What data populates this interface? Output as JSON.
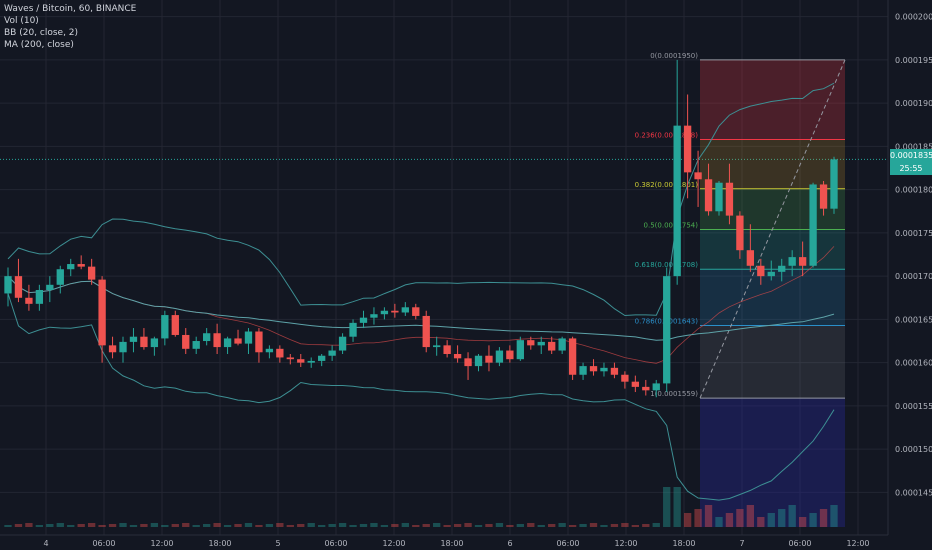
{
  "legend": {
    "symbol_line": "Waves / Bitcoin, 60, BINANCE",
    "vol": "Vol (10)",
    "bb": "BB (20, close, 2)",
    "ma": "MA (200, close)"
  },
  "badges": {
    "price": "0.0001835",
    "countdown": "25:55"
  },
  "colors": {
    "bg": "#131722",
    "up": "#26a69a",
    "down": "#ef5350",
    "grid": "#232632",
    "bb": "#3d8f93",
    "ma": "#d94a4a"
  },
  "chart_data": {
    "type": "candlestick",
    "ylim": [
      0.000141,
      0.000201
    ],
    "y_ticks": [
      "0.0002000",
      "0.0001950",
      "0.0001900",
      "0.0001850",
      "0.0001800",
      "0.0001750",
      "0.0001700",
      "0.0001650",
      "0.0001600",
      "0.0001550",
      "0.0001500",
      "0.0001450"
    ],
    "x_ticks": [
      "4",
      "06:00",
      "12:00",
      "18:00",
      "5",
      "06:00",
      "12:00",
      "18:00",
      "6",
      "06:00",
      "12:00",
      "18:00",
      "7",
      "06:00",
      "12:00"
    ],
    "current_price": 0.0001835,
    "fibonacci": [
      {
        "label": "0(0.0001950)",
        "value": 0.000195,
        "color": "#9598a1"
      },
      {
        "label": "0.236(0.0001858)",
        "value": 0.0001858,
        "color": "#f23645"
      },
      {
        "label": "0.382(0.0001801)",
        "value": 0.0001801,
        "color": "#c8c834"
      },
      {
        "label": "0.5(0.0001754)",
        "value": 0.0001754,
        "color": "#4caf50"
      },
      {
        "label": "0.618(0.0001708)",
        "value": 0.0001708,
        "color": "#26a69a"
      },
      {
        "label": "0.786(0.0001643)",
        "value": 0.0001643,
        "color": "#2a8fc9"
      },
      {
        "label": "1(0.0001559)",
        "value": 0.0001559,
        "color": "#9598a1"
      }
    ],
    "candles": [
      [
        0.000168,
        0.000171,
        0.0001665,
        0.00017
      ],
      [
        0.00017,
        0.000172,
        0.000167,
        0.0001675
      ],
      [
        0.0001675,
        0.000169,
        0.000166,
        0.0001668
      ],
      [
        0.0001668,
        0.000169,
        0.000166,
        0.0001684
      ],
      [
        0.0001684,
        0.00017,
        0.000167,
        0.000169
      ],
      [
        0.000169,
        0.0001712,
        0.000168,
        0.0001708
      ],
      [
        0.0001708,
        0.000172,
        0.00017,
        0.0001714
      ],
      [
        0.0001714,
        0.0001724,
        0.0001708,
        0.0001711
      ],
      [
        0.0001711,
        0.000172,
        0.000169,
        0.0001696
      ],
      [
        0.0001696,
        0.00017,
        0.00016,
        0.000162
      ],
      [
        0.000162,
        0.000163,
        0.0001605,
        0.0001612
      ],
      [
        0.0001612,
        0.000163,
        0.00016,
        0.0001624
      ],
      [
        0.0001624,
        0.000164,
        0.0001612,
        0.000163
      ],
      [
        0.000163,
        0.000164,
        0.0001615,
        0.0001618
      ],
      [
        0.0001618,
        0.000163,
        0.0001608,
        0.0001628
      ],
      [
        0.0001628,
        0.000166,
        0.000162,
        0.0001655
      ],
      [
        0.0001655,
        0.000166,
        0.000163,
        0.0001632
      ],
      [
        0.0001632,
        0.000164,
        0.000161,
        0.0001616
      ],
      [
        0.0001616,
        0.000163,
        0.000161,
        0.0001625
      ],
      [
        0.0001625,
        0.000164,
        0.000162,
        0.0001634
      ],
      [
        0.0001634,
        0.0001645,
        0.000161,
        0.0001618
      ],
      [
        0.0001618,
        0.000163,
        0.000161,
        0.0001628
      ],
      [
        0.0001628,
        0.0001638,
        0.000162,
        0.0001622
      ],
      [
        0.0001622,
        0.000164,
        0.000161,
        0.0001636
      ],
      [
        0.0001636,
        0.000164,
        0.00016,
        0.0001612
      ],
      [
        0.0001612,
        0.000162,
        0.0001605,
        0.0001616
      ],
      [
        0.0001616,
        0.000162,
        0.00016,
        0.0001606
      ],
      [
        0.0001606,
        0.000161,
        0.0001598,
        0.0001604
      ],
      [
        0.0001604,
        0.000161,
        0.0001595,
        0.00016
      ],
      [
        0.00016,
        0.0001606,
        0.0001594,
        0.0001602
      ],
      [
        0.0001602,
        0.000161,
        0.0001596,
        0.0001608
      ],
      [
        0.0001608,
        0.000162,
        0.0001602,
        0.0001614
      ],
      [
        0.0001614,
        0.0001634,
        0.000161,
        0.000163
      ],
      [
        0.000163,
        0.000165,
        0.0001624,
        0.0001646
      ],
      [
        0.0001646,
        0.000166,
        0.000164,
        0.0001652
      ],
      [
        0.0001652,
        0.0001664,
        0.0001644,
        0.0001656
      ],
      [
        0.0001656,
        0.0001664,
        0.000165,
        0.000166
      ],
      [
        0.000166,
        0.0001668,
        0.0001652,
        0.0001658
      ],
      [
        0.0001658,
        0.000167,
        0.0001654,
        0.0001664
      ],
      [
        0.0001664,
        0.0001668,
        0.000165,
        0.0001654
      ],
      [
        0.0001654,
        0.000166,
        0.0001612,
        0.0001618
      ],
      [
        0.0001618,
        0.000163,
        0.0001608,
        0.000162
      ],
      [
        0.000162,
        0.0001626,
        0.0001606,
        0.000161
      ],
      [
        0.000161,
        0.000162,
        0.00016,
        0.0001605
      ],
      [
        0.0001605,
        0.0001612,
        0.000158,
        0.0001596
      ],
      [
        0.0001596,
        0.000161,
        0.000159,
        0.0001608
      ],
      [
        0.0001608,
        0.000162,
        0.000159,
        0.00016
      ],
      [
        0.00016,
        0.0001618,
        0.0001596,
        0.0001614
      ],
      [
        0.0001614,
        0.000162,
        0.00016,
        0.0001604
      ],
      [
        0.0001604,
        0.000163,
        0.0001602,
        0.0001626
      ],
      [
        0.0001626,
        0.000163,
        0.0001615,
        0.000162
      ],
      [
        0.000162,
        0.000163,
        0.000161,
        0.0001624
      ],
      [
        0.0001624,
        0.000163,
        0.000161,
        0.0001614
      ],
      [
        0.0001614,
        0.000163,
        0.000161,
        0.0001628
      ],
      [
        0.0001628,
        0.000163,
        0.000158,
        0.0001586
      ],
      [
        0.0001586,
        0.00016,
        0.000158,
        0.0001596
      ],
      [
        0.0001596,
        0.0001604,
        0.0001585,
        0.000159
      ],
      [
        0.000159,
        0.00016,
        0.0001584,
        0.0001594
      ],
      [
        0.0001594,
        0.00016,
        0.0001582,
        0.0001586
      ],
      [
        0.0001586,
        0.000159,
        0.000157,
        0.0001578
      ],
      [
        0.0001578,
        0.0001585,
        0.0001566,
        0.0001572
      ],
      [
        0.0001572,
        0.000158,
        0.0001562,
        0.0001568
      ],
      [
        0.0001568,
        0.000158,
        0.000156,
        0.0001576
      ],
      [
        0.0001576,
        0.000171,
        0.0001566,
        0.00017
      ],
      [
        0.00017,
        0.000195,
        0.000169,
        0.0001874
      ],
      [
        0.0001874,
        0.000191,
        0.000179,
        0.000182
      ],
      [
        0.000182,
        0.0001845,
        0.000178,
        0.0001812
      ],
      [
        0.0001812,
        0.000183,
        0.000177,
        0.0001775
      ],
      [
        0.0001775,
        0.000181,
        0.000177,
        0.0001808
      ],
      [
        0.0001808,
        0.000183,
        0.000176,
        0.000177
      ],
      [
        0.000177,
        0.0001775,
        0.000172,
        0.000173
      ],
      [
        0.000173,
        0.000176,
        0.0001705,
        0.0001712
      ],
      [
        0.0001712,
        0.000172,
        0.000169,
        0.00017
      ],
      [
        0.00017,
        0.0001718,
        0.0001695,
        0.0001705
      ],
      [
        0.0001705,
        0.000172,
        0.0001694,
        0.0001712
      ],
      [
        0.0001712,
        0.000173,
        0.00017,
        0.0001722
      ],
      [
        0.0001722,
        0.000174,
        0.00017,
        0.0001712
      ],
      [
        0.0001712,
        0.0001808,
        0.000171,
        0.0001806
      ],
      [
        0.0001806,
        0.000181,
        0.000177,
        0.0001778
      ],
      [
        0.0001778,
        0.0001838,
        0.0001772,
        0.0001835
      ]
    ]
  }
}
